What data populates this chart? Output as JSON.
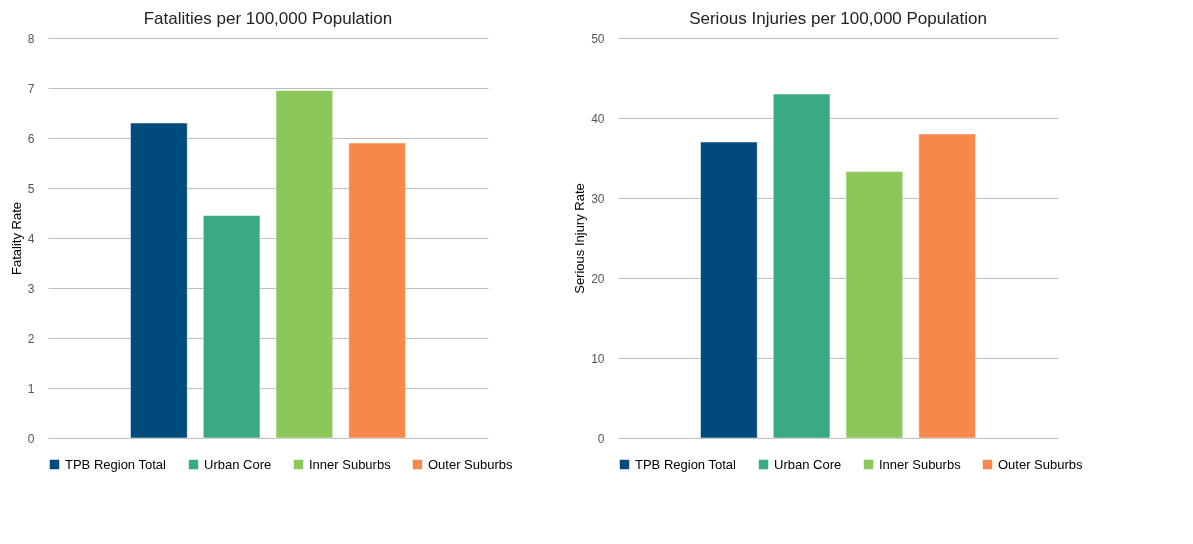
{
  "chart_data": [
    {
      "type": "bar",
      "title": "Fatalities per 100,000 Population",
      "ylabel": "Fatality Rate",
      "categories": [
        null
      ],
      "series": [
        {
          "name": "TPB Region Total",
          "color": "#004b7c",
          "values": [
            6.3
          ]
        },
        {
          "name": "Urban Core",
          "color": "#3aaa84",
          "values": [
            4.45
          ]
        },
        {
          "name": "Inner Suburbs",
          "color": "#8bc75a",
          "values": [
            6.95
          ]
        },
        {
          "name": "Outer Suburbs",
          "color": "#f5884a",
          "values": [
            5.9
          ]
        }
      ],
      "ylim": [
        0,
        8
      ],
      "yticks": [
        0,
        1,
        2,
        3,
        4,
        5,
        6,
        7,
        8
      ],
      "grid": "y",
      "legend": "bottom"
    },
    {
      "type": "bar",
      "title": "Serious Injuries per 100,000 Population",
      "ylabel": "Serious Injury Rate",
      "categories": [
        null
      ],
      "series": [
        {
          "name": "TPB Region Total",
          "color": "#004b7c",
          "values": [
            37
          ]
        },
        {
          "name": "Urban Core",
          "color": "#3aaa84",
          "values": [
            43
          ]
        },
        {
          "name": "Inner Suburbs",
          "color": "#8bc75a",
          "values": [
            33.3
          ]
        },
        {
          "name": "Outer Suburbs",
          "color": "#f5884a",
          "values": [
            38
          ]
        }
      ],
      "ylim": [
        0,
        50
      ],
      "yticks": [
        0,
        10,
        20,
        30,
        40,
        50
      ],
      "grid": "y",
      "legend": "bottom"
    }
  ]
}
